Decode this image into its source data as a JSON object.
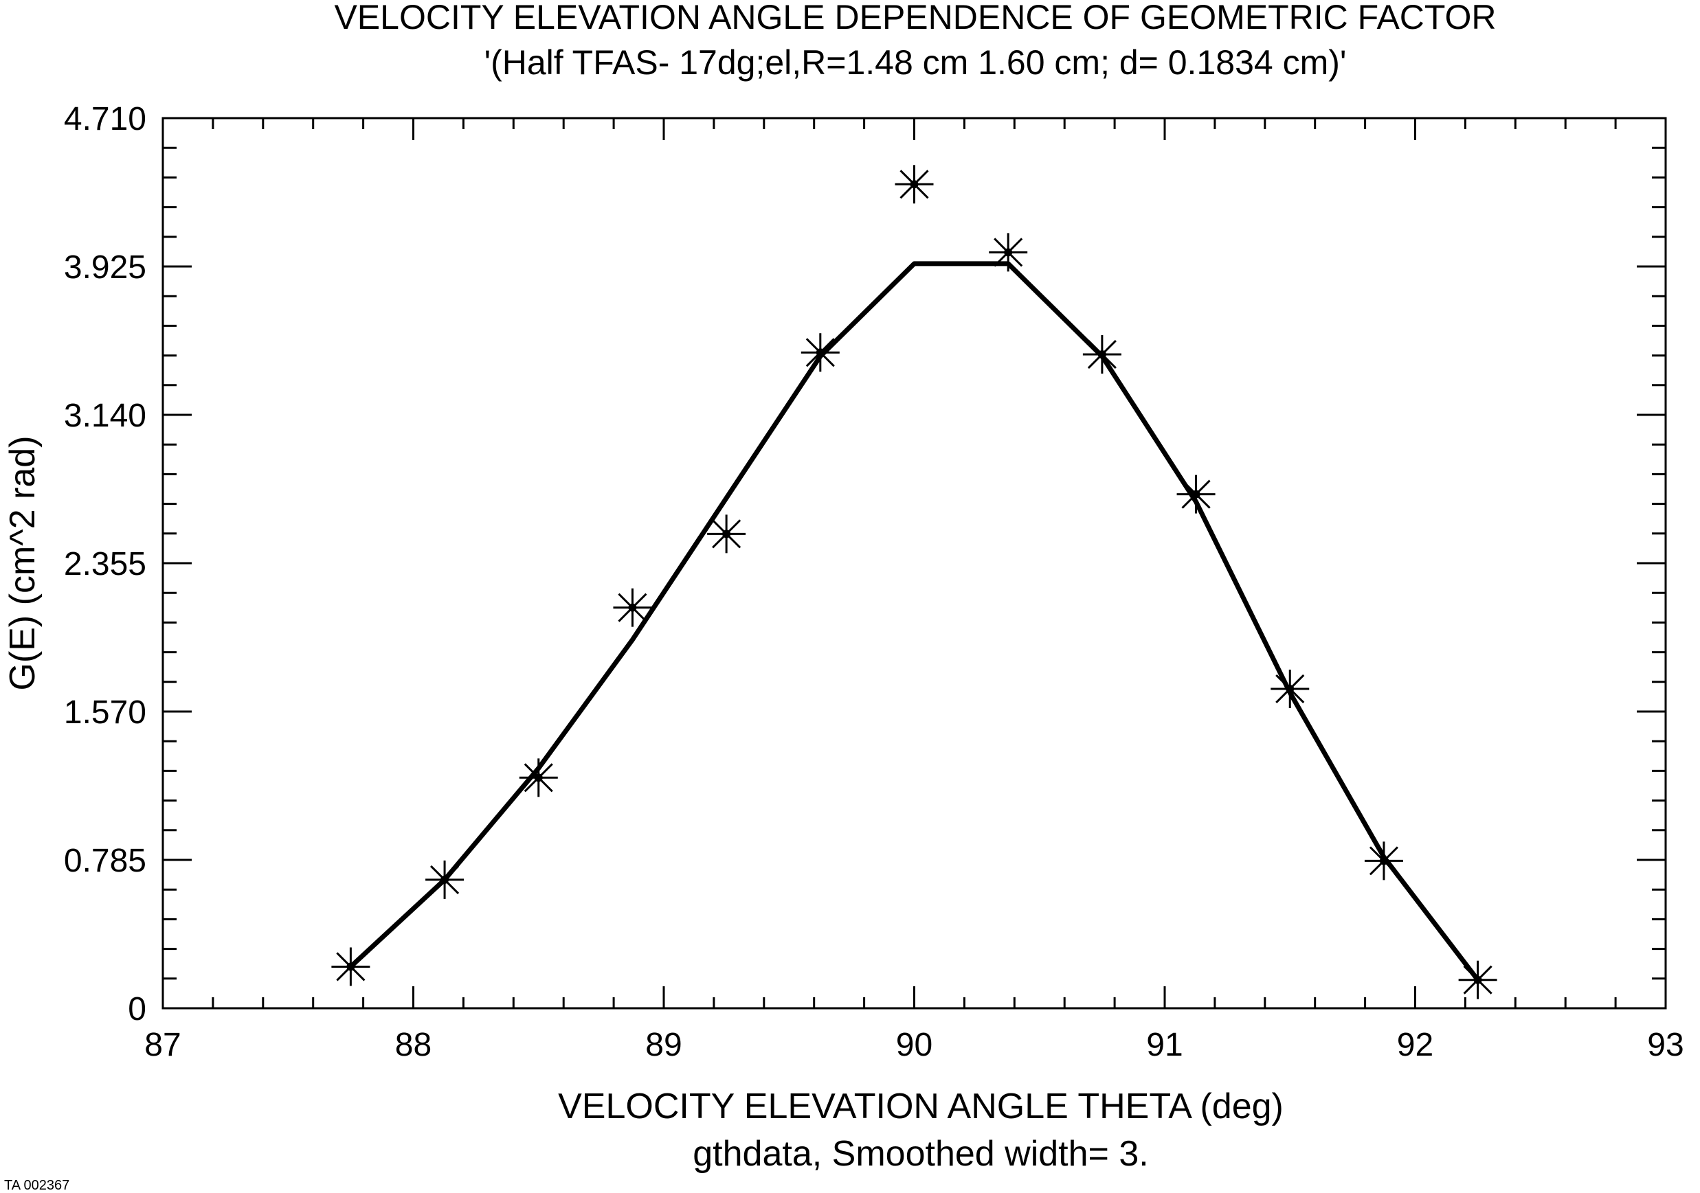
{
  "chart_data": {
    "type": "line",
    "title": "VELOCITY ELEVATION  ANGLE DEPENDENCE OF GEOMETRIC FACTOR",
    "subtitle": "'(Half TFAS- 17dg;el,R=1.48 cm 1.60 cm; d= 0.1834 cm)'",
    "xlabel": "VELOCITY ELEVATION ANGLE THETA (deg)",
    "xlabel2": "gthdata, Smoothed width= 3.",
    "ylabel": "G(E) (cm^2 rad)",
    "xlim": [
      87,
      93
    ],
    "ylim": [
      0,
      4.71
    ],
    "xticks": [
      87,
      88,
      89,
      90,
      91,
      92,
      93
    ],
    "xtick_labels": [
      "87",
      "88",
      "89",
      "90",
      "91",
      "92",
      "93"
    ],
    "yticks": [
      0,
      0.785,
      1.57,
      2.355,
      3.14,
      3.925,
      4.71
    ],
    "ytick_labels": [
      "0",
      "0.785",
      "1.570",
      "2.355",
      "3.140",
      "3.925",
      "4.710"
    ],
    "grid": false,
    "series": [
      {
        "name": "gthdata",
        "style": "markers",
        "marker": "asterisk",
        "x": [
          87.75,
          88.125,
          88.5,
          88.875,
          89.25,
          89.625,
          90.0,
          90.375,
          90.75,
          91.125,
          91.5,
          91.875,
          92.25
        ],
        "y": [
          0.22,
          0.68,
          1.22,
          2.12,
          2.51,
          3.47,
          4.36,
          4.0,
          3.46,
          2.72,
          1.69,
          0.78,
          0.15
        ]
      },
      {
        "name": "Smoothed width= 3.",
        "style": "line",
        "x": [
          87.75,
          88.125,
          88.5,
          88.875,
          89.25,
          89.625,
          90.0,
          90.375,
          90.75,
          91.125,
          91.5,
          91.875,
          92.25
        ],
        "y": [
          0.22,
          0.68,
          1.27,
          1.95,
          2.7,
          3.45,
          3.94,
          3.94,
          3.45,
          2.68,
          1.67,
          0.8,
          0.15
        ]
      }
    ]
  },
  "footer": {
    "code": "TA 002367"
  }
}
